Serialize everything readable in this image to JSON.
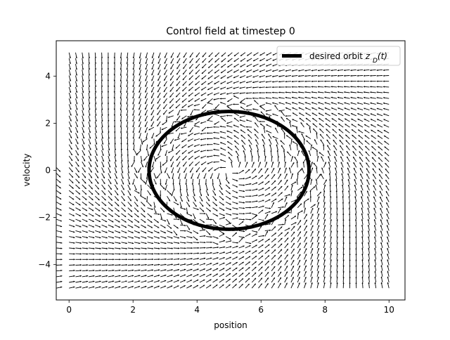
{
  "chart_data": {
    "type": "quiver",
    "title": "Control field at timestep 0",
    "xlabel": "position",
    "ylabel": "velocity",
    "xlim": [
      -0.4,
      10.5
    ],
    "ylim": [
      -5.5,
      5.5
    ],
    "xticks": [
      0,
      2,
      4,
      6,
      8,
      10
    ],
    "xtick_labels": [
      "0",
      "2",
      "4",
      "6",
      "8",
      "10"
    ],
    "yticks": [
      4,
      2,
      0,
      -2,
      -4
    ],
    "ytick_labels": [
      "4",
      "2",
      "0",
      "−2",
      "−4"
    ],
    "grid": false,
    "legend": {
      "location": "top-right",
      "entries": [
        {
          "label_text": "desired orbit ",
          "label_math": "z_D(t)",
          "color": "#000000"
        }
      ]
    },
    "desired_orbit": {
      "shape": "ellipse",
      "center": [
        5.0,
        0.0
      ],
      "radius_position": 2.5,
      "radius_velocity": 2.5,
      "color": "#000000"
    },
    "vector_field": {
      "color": "#000000",
      "x_range": [
        0,
        10
      ],
      "y_range": [
        -5,
        5
      ],
      "nx": 50,
      "ny": 42,
      "extra_left_column_x": -0.4,
      "extra_left_column_y_range": [
        -5,
        0
      ]
    }
  }
}
